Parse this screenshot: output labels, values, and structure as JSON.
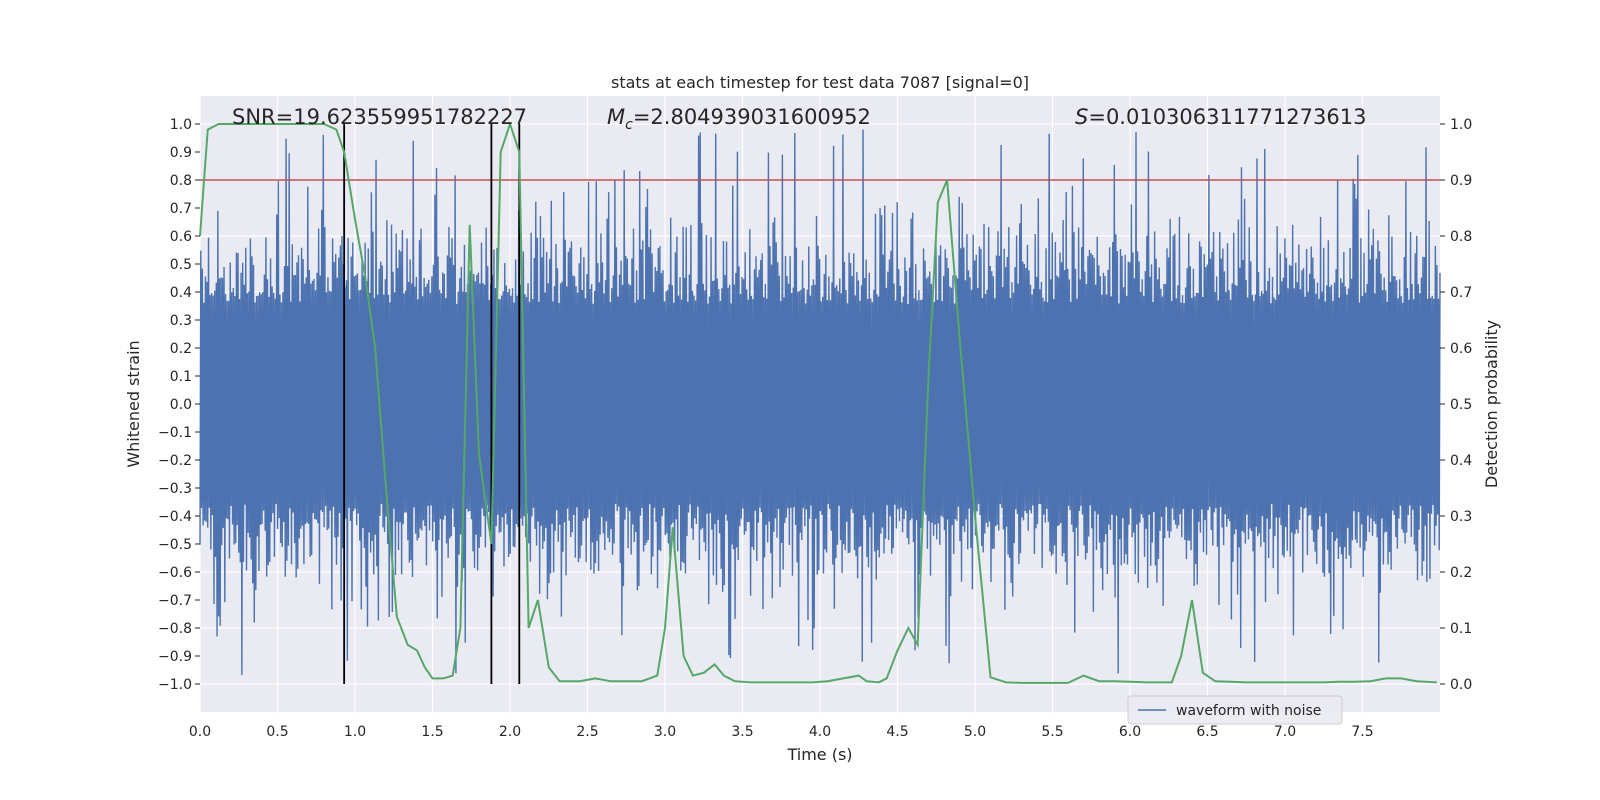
{
  "chart_data": {
    "type": "line",
    "title": "stats at each timestep for test data 7087 [signal=0]",
    "xlabel": "Time (s)",
    "ylabel": "Whitened strain",
    "y2label": "Detection probability",
    "xlim": [
      0,
      8
    ],
    "ylim": [
      -1.1,
      1.1
    ],
    "y2lim": [
      -0.05,
      1.05
    ],
    "xticks": [
      "0.0",
      "0.5",
      "1.0",
      "1.5",
      "2.0",
      "2.5",
      "3.0",
      "3.5",
      "4.0",
      "4.5",
      "5.0",
      "5.5",
      "6.0",
      "6.5",
      "7.0",
      "7.5"
    ],
    "yticks": [
      "1.0",
      "0.9",
      "0.8",
      "0.7",
      "0.6",
      "0.5",
      "0.4",
      "0.3",
      "0.2",
      "0.1",
      "0.0",
      "-0.1",
      "-0.2",
      "-0.3",
      "-0.4",
      "-0.5",
      "-0.6",
      "-0.7",
      "-0.8",
      "-0.9",
      "-1.0"
    ],
    "y2ticks": [
      "1.0",
      "0.9",
      "0.8",
      "0.7",
      "0.6",
      "0.5",
      "0.4",
      "0.3",
      "0.2",
      "0.1",
      "0.0"
    ],
    "annotations": {
      "snr": "SNR=19.623559951782227",
      "mc_symbol": "M",
      "mc_sub": "c",
      "mc_value": "=2.804939031600952",
      "s_symbol": "S",
      "s_value": "=0.010306311771273613"
    },
    "legend": {
      "label": "waveform with noise",
      "placement": "lower-right"
    },
    "threshold_line": {
      "y2": 0.9,
      "color": "#c44e52"
    },
    "event_lines_x": [
      0.93,
      1.88,
      2.06
    ],
    "waveform": {
      "name": "waveform with noise",
      "color": "#4c72b0",
      "t_start": 0,
      "t_end": 8,
      "n_samples": 1600,
      "typical_amplitude": 0.42,
      "peak_amplitude": 0.98
    },
    "series": [
      {
        "name": "detection probability",
        "color": "#55a868",
        "x": [
          0.0,
          0.05,
          0.12,
          0.2,
          0.3,
          0.4,
          0.5,
          0.6,
          0.7,
          0.8,
          0.88,
          0.93,
          1.0,
          1.07,
          1.13,
          1.2,
          1.27,
          1.34,
          1.4,
          1.45,
          1.5,
          1.57,
          1.63,
          1.68,
          1.74,
          1.8,
          1.88,
          1.94,
          2.0,
          2.06,
          2.12,
          2.18,
          2.25,
          2.32,
          2.37,
          2.45,
          2.55,
          2.65,
          2.75,
          2.85,
          2.95,
          3.0,
          3.05,
          3.12,
          3.18,
          3.25,
          3.32,
          3.38,
          3.45,
          3.55,
          3.65,
          3.75,
          3.85,
          3.95,
          4.05,
          4.15,
          4.25,
          4.3,
          4.38,
          4.43,
          4.5,
          4.57,
          4.63,
          4.7,
          4.76,
          4.82,
          4.9,
          5.0,
          5.1,
          5.2,
          5.3,
          5.4,
          5.5,
          5.6,
          5.7,
          5.8,
          5.9,
          6.0,
          6.1,
          6.2,
          6.27,
          6.33,
          6.4,
          6.47,
          6.55,
          6.65,
          6.75,
          6.85,
          6.95,
          7.05,
          7.15,
          7.25,
          7.35,
          7.45,
          7.55,
          7.65,
          7.75,
          7.85,
          7.98
        ],
        "values": [
          0.8,
          0.99,
          1.0,
          1.0,
          1.0,
          1.0,
          1.0,
          1.0,
          1.0,
          1.0,
          0.99,
          0.95,
          0.83,
          0.72,
          0.6,
          0.35,
          0.12,
          0.07,
          0.06,
          0.03,
          0.01,
          0.01,
          0.015,
          0.1,
          0.82,
          0.41,
          0.25,
          0.95,
          1.0,
          0.95,
          0.1,
          0.15,
          0.03,
          0.005,
          0.005,
          0.005,
          0.01,
          0.005,
          0.005,
          0.005,
          0.015,
          0.1,
          0.28,
          0.05,
          0.015,
          0.02,
          0.035,
          0.015,
          0.005,
          0.003,
          0.003,
          0.003,
          0.003,
          0.003,
          0.005,
          0.01,
          0.015,
          0.005,
          0.003,
          0.01,
          0.06,
          0.1,
          0.07,
          0.55,
          0.86,
          0.9,
          0.62,
          0.3,
          0.012,
          0.003,
          0.002,
          0.002,
          0.002,
          0.002,
          0.015,
          0.005,
          0.005,
          0.004,
          0.003,
          0.003,
          0.003,
          0.05,
          0.15,
          0.02,
          0.005,
          0.004,
          0.003,
          0.003,
          0.003,
          0.003,
          0.003,
          0.003,
          0.004,
          0.004,
          0.005,
          0.01,
          0.01,
          0.005,
          0.003
        ]
      }
    ]
  }
}
